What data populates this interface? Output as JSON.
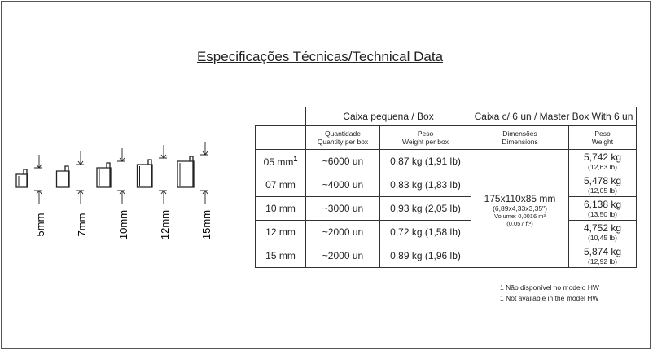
{
  "title": "Especificações Técnicas/Technical Data",
  "sizes": [
    "5mm",
    "7mm",
    "10mm",
    "12mm",
    "15mm"
  ],
  "table": {
    "header_groups": [
      "Caixa pequena / Box",
      "Caixa c/ 6 un / Master Box With 6 un"
    ],
    "columns": [
      [
        "Quantidade",
        "Quantity per box"
      ],
      [
        "Peso",
        "Weight per box"
      ],
      [
        "Dimensões",
        "Dimensions"
      ],
      [
        "Peso",
        "Weight"
      ]
    ],
    "rows": [
      {
        "size": "05 mm",
        "note": "1",
        "quantity": "~6000 un",
        "weight": "0,87 kg (1,91 lb)",
        "master_weight": "5,742 kg",
        "master_weight_lb": "(12,63 lb)"
      },
      {
        "size": "07 mm",
        "quantity": "~4000 un",
        "weight": "0,83 kg (1,83 lb)",
        "master_weight": "5,478 kg",
        "master_weight_lb": "(12,05 lb)"
      },
      {
        "size": "10 mm",
        "quantity": "~3000 un",
        "weight": "0,93 kg (2,05 lb)",
        "master_weight": "6,138 kg",
        "master_weight_lb": "(13,50 lb)"
      },
      {
        "size": "12 mm",
        "quantity": "~2000 un",
        "weight": "0,72 kg (1,58 lb)",
        "master_weight": "4,752 kg",
        "master_weight_lb": "(10,45 lb)"
      },
      {
        "size": "15 mm",
        "quantity": "~2000 un",
        "weight": "0,89 kg (1,96 lb)",
        "master_weight": "5,874 kg",
        "master_weight_lb": "(12,92 lb)"
      }
    ],
    "dimensions": {
      "mm": "175x110x85 mm",
      "in": "(6,89x4,33x3,35\")",
      "volume": "Volume: 0,0016 m³",
      "volume_ft": "(0,057 ft³)"
    }
  },
  "footnotes": [
    "1 Não disponível no modelo HW",
    "1 Not available in the model HW"
  ]
}
